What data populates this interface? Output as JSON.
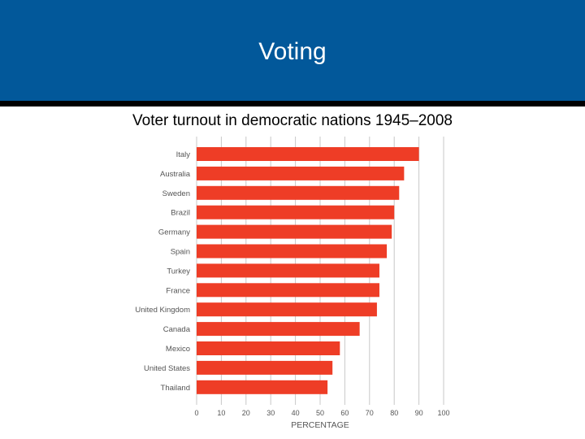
{
  "header": {
    "title": "Voting",
    "background_color": "#02589a",
    "rule_color": "#000000"
  },
  "subtitle": "Voter turnout in democratic nations 1945–2008",
  "chart_data": {
    "type": "bar",
    "orientation": "horizontal",
    "categories": [
      "Italy",
      "Australia",
      "Sweden",
      "Brazil",
      "Germany",
      "Spain",
      "Turkey",
      "France",
      "United Kingdom",
      "Canada",
      "Mexico",
      "United States",
      "Thailand"
    ],
    "values": [
      90,
      84,
      82,
      80,
      79,
      77,
      74,
      74,
      73,
      66,
      58,
      55,
      53
    ],
    "xlabel": "PERCENTAGE",
    "ylabel": "",
    "xlim": [
      0,
      100
    ],
    "xticks": [
      0,
      10,
      20,
      30,
      40,
      50,
      60,
      70,
      80,
      90,
      100
    ],
    "grid": "vertical",
    "bar_color": "#ee3d26",
    "grid_color": "#c8c8c8"
  }
}
